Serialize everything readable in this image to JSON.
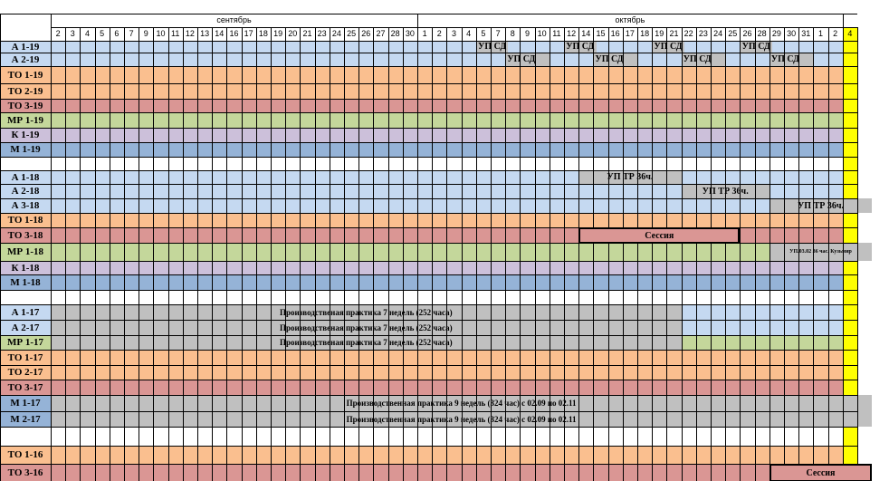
{
  "sheet": {
    "months": [
      "сентябрь",
      "октябрь"
    ],
    "day_headers": [
      "2",
      "3",
      "4",
      "5",
      "6",
      "7",
      "9",
      "10",
      "11",
      "12",
      "13",
      "14",
      "16",
      "17",
      "18",
      "19",
      "20",
      "21",
      "23",
      "24",
      "25",
      "26",
      "27",
      "28",
      "30",
      "1",
      "2",
      "3",
      "4",
      "5",
      "7",
      "8",
      "9",
      "10",
      "11",
      "12",
      "14",
      "15",
      "16",
      "17",
      "18",
      "19",
      "21",
      "22",
      "23",
      "24",
      "25",
      "26",
      "28",
      "29",
      "30",
      "31",
      "1",
      "2",
      "4"
    ],
    "rows": [
      {
        "label": "А 1-19",
        "color": "#c5d9f1"
      },
      {
        "label": "А 2-19",
        "color": "#c5d9f1"
      },
      {
        "label": "ТО 1-19",
        "color": "#fabf8f"
      },
      {
        "label": "ТО 2-19",
        "color": "#fabf8f"
      },
      {
        "label": "ТО 3-19",
        "color": "#da9694"
      },
      {
        "label": "МР 1-19",
        "color": "#c4d79b"
      },
      {
        "label": "К 1-19",
        "color": "#ccc0da"
      },
      {
        "label": "М 1-19",
        "color": "#95b3d7"
      },
      {
        "label": "",
        "color": "#ffffff"
      },
      {
        "label": "А 1-18",
        "color": "#c5d9f1"
      },
      {
        "label": "А 2-18",
        "color": "#c5d9f1"
      },
      {
        "label": "А 3-18",
        "color": "#c5d9f1"
      },
      {
        "label": "ТО 1-18",
        "color": "#fabf8f"
      },
      {
        "label": "ТО 3-18",
        "color": "#da9694"
      },
      {
        "label": "МР 1-18",
        "color": "#c4d79b"
      },
      {
        "label": "К 1-18",
        "color": "#ccc0da"
      },
      {
        "label": "М 1-18",
        "color": "#95b3d7"
      },
      {
        "label": "",
        "color": "#ffffff"
      },
      {
        "label": "А 1-17",
        "color": "#c5d9f1"
      },
      {
        "label": "А 2-17",
        "color": "#c5d9f1"
      },
      {
        "label": "МР 1-17",
        "color": "#c4d79b"
      },
      {
        "label": "ТО 1-17",
        "color": "#fabf8f"
      },
      {
        "label": "ТО 2-17",
        "color": "#fabf8f"
      },
      {
        "label": "ТО 3-17",
        "color": "#da9694"
      },
      {
        "label": "М 1-17",
        "color": "#95b3d7"
      },
      {
        "label": "М 2-17",
        "color": "#95b3d7"
      },
      {
        "label": "",
        "color": "#ffffff"
      },
      {
        "label": "ТО 1-16",
        "color": "#fabf8f"
      },
      {
        "label": "ТО 3-16",
        "color": "#da9694"
      }
    ],
    "texts": {
      "up_sd": "УП СД",
      "up_tr": "УП ТР 36ч.",
      "session": "Сессия",
      "up0302": "УП.03.02 36 час. Кузьмир",
      "pp7": "Производственая практика 7 недель (252 часа)",
      "pp9": "Производственная практика 9 недель (324 час) с 02.09 по 02.11"
    },
    "colors": {
      "grey_fill": "#c0c0c0",
      "yellow_col": "#ffff00",
      "grid": "#000000"
    }
  }
}
